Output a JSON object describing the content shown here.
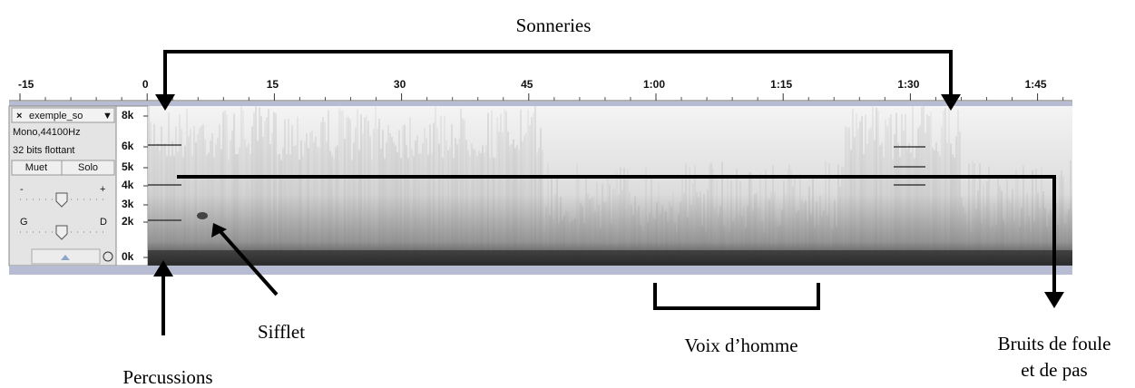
{
  "timeline": {
    "labels": [
      "-15",
      "0",
      "15",
      "30",
      "45",
      "1:00",
      "1:15",
      "1:30",
      "1:45"
    ]
  },
  "track_panel": {
    "close": "×",
    "name": "exemple_so",
    "menu": "▼",
    "format": "Mono,44100Hz",
    "sample": "32 bits flottant",
    "mute": "Muet",
    "solo": "Solo",
    "gain_minus": "-",
    "gain_plus": "+",
    "pan_left": "G",
    "pan_right": "D"
  },
  "frequency_axis": {
    "labels": [
      "8k",
      "6k",
      "5k",
      "4k",
      "3k",
      "2k",
      "0k"
    ]
  },
  "annotations": {
    "rings": "Sonneries",
    "whistle": "Sifflet",
    "percussion": "Percussions",
    "male_voice": "Voix d’homme",
    "crowd_line1": "Bruits de foule",
    "crowd_line2": "et de pas"
  }
}
